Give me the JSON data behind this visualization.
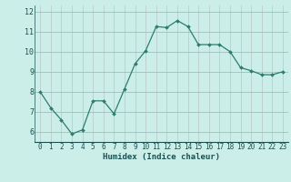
{
  "x": [
    0,
    1,
    2,
    3,
    4,
    5,
    6,
    7,
    8,
    9,
    10,
    11,
    12,
    13,
    14,
    15,
    16,
    17,
    18,
    19,
    20,
    21,
    22,
    23
  ],
  "y": [
    8.0,
    7.2,
    6.6,
    5.9,
    6.1,
    7.55,
    7.55,
    6.9,
    8.15,
    9.4,
    10.05,
    11.25,
    11.2,
    11.55,
    11.25,
    10.35,
    10.35,
    10.35,
    10.0,
    9.2,
    9.05,
    8.85,
    8.85,
    9.0
  ],
  "line_color": "#2d7d6e",
  "marker": "D",
  "marker_size": 2.0,
  "bg_color": "#cceee8",
  "grid_color_h": "#c8a0a0",
  "grid_color_v": "#b8c8c8",
  "xlabel": "Humidex (Indice chaleur)",
  "xlabel_color": "#1a5050",
  "ylim": [
    5.5,
    12.3
  ],
  "xlim": [
    -0.5,
    23.5
  ],
  "yticks": [
    6,
    7,
    8,
    9,
    10,
    11,
    12
  ],
  "xticks": [
    0,
    1,
    2,
    3,
    4,
    5,
    6,
    7,
    8,
    9,
    10,
    11,
    12,
    13,
    14,
    15,
    16,
    17,
    18,
    19,
    20,
    21,
    22,
    23
  ],
  "tick_label_color": "#1a5050",
  "tick_fontsize": 5.5,
  "xlabel_fontsize": 6.5,
  "xlabel_fontweight": "bold",
  "linewidth": 0.9
}
